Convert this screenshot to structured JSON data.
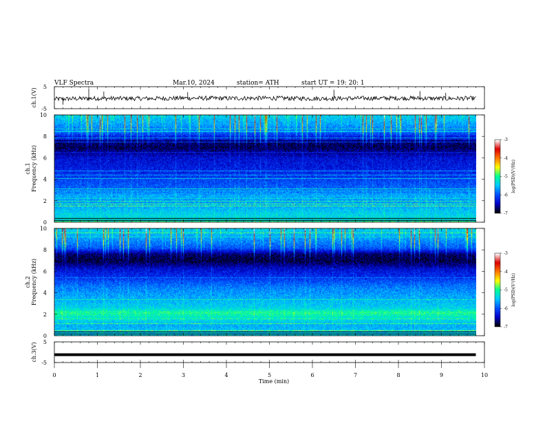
{
  "header": {
    "title": "VLF  Spectra",
    "date": "Mar.10, 2024",
    "station": "station= ATH",
    "start_ut": "start  UT  =    19: 20: 1"
  },
  "chart_data": [
    {
      "type": "line",
      "name": "ch1-waveform",
      "ylabel": "ch.1(V)",
      "ylim": [
        -5,
        5
      ],
      "y_ticks": [
        "5",
        "-5"
      ],
      "x": [
        0,
        1,
        2,
        3,
        4,
        5,
        6,
        7,
        8,
        9,
        9.8
      ],
      "values": [
        -0.6,
        -0.3,
        -0.4,
        -0.2,
        -0.3,
        -0.2,
        -0.4,
        -0.3,
        -0.2,
        -0.4,
        -0.3
      ],
      "spikes": [
        {
          "x": 0.2,
          "y": -3.2
        },
        {
          "x": 0.8,
          "y": 4.2
        },
        {
          "x": 1.15,
          "y": 2.8
        },
        {
          "x": 3.1,
          "y": 2.5
        },
        {
          "x": 6.5,
          "y": 3.6
        },
        {
          "x": 8.5,
          "y": 3.0
        },
        {
          "x": 9.1,
          "y": 2.2
        }
      ],
      "line_color": "#000000"
    },
    {
      "type": "heatmap",
      "name": "ch1-spectrogram",
      "ylabel": "ch.1\nFrequency  (kHz)",
      "ylim": [
        0,
        10
      ],
      "y_ticks": [
        "0",
        "2",
        "4",
        "6",
        "8",
        "10"
      ],
      "x_range_min": [
        0,
        9.8
      ],
      "profile_khz_level": [
        [
          0.0,
          3.4
        ],
        [
          0.8,
          3.2
        ],
        [
          1.5,
          2.8
        ],
        [
          2.0,
          2.6
        ],
        [
          2.5,
          2.8
        ],
        [
          3.0,
          2.2
        ],
        [
          4.0,
          1.8
        ],
        [
          5.0,
          1.4
        ],
        [
          6.0,
          1.2
        ],
        [
          7.0,
          0.4
        ],
        [
          7.6,
          0.6
        ],
        [
          8.2,
          1.8
        ],
        [
          9.0,
          2.6
        ],
        [
          10.0,
          3.2
        ]
      ],
      "colorbar": {
        "label": "log(PSD)(V²/Hz)",
        "range": [
          -7,
          -3
        ],
        "ticks": [
          "-3",
          "-4",
          "-5",
          "-6",
          "-7"
        ]
      }
    },
    {
      "type": "heatmap",
      "name": "ch2-spectrogram",
      "ylabel": "ch.2\nFrequency  (kHz)",
      "ylim": [
        0,
        10
      ],
      "y_ticks": [
        "0",
        "2",
        "4",
        "6",
        "8",
        "10"
      ],
      "x_range_min": [
        0,
        9.8
      ],
      "profile_khz_level": [
        [
          0.0,
          3.2
        ],
        [
          1.0,
          2.8
        ],
        [
          1.8,
          3.6
        ],
        [
          2.2,
          4.0
        ],
        [
          2.6,
          3.2
        ],
        [
          3.5,
          2.8
        ],
        [
          4.5,
          2.4
        ],
        [
          5.5,
          1.6
        ],
        [
          6.2,
          1.2
        ],
        [
          7.0,
          0.3
        ],
        [
          7.6,
          0.5
        ],
        [
          8.2,
          2.0
        ],
        [
          9.0,
          2.6
        ],
        [
          10.0,
          3.2
        ]
      ],
      "colorbar": {
        "label": "log(PSD)(V²/Hz)",
        "range": [
          -7,
          -3
        ],
        "ticks": [
          "-3",
          "-4",
          "-5",
          "-6",
          "-7"
        ]
      }
    },
    {
      "type": "line",
      "name": "ch3-waveform",
      "ylabel": "ch.3(V)",
      "ylim": [
        -5,
        5
      ],
      "y_ticks": [
        "5",
        "-5"
      ],
      "x": [
        0,
        9.8
      ],
      "values": [
        -1.2,
        -1.2
      ],
      "line_color": "#000000"
    }
  ],
  "x_axis": {
    "label": "Time  (min)",
    "xlim": [
      0,
      10
    ],
    "ticks": [
      "0",
      "1",
      "2",
      "3",
      "4",
      "5",
      "6",
      "7",
      "8",
      "9",
      "10"
    ]
  },
  "colormap": [
    "#000000",
    "#0000c8",
    "#0050ff",
    "#00c8ff",
    "#00ff96",
    "#ffff00",
    "#ff7800",
    "#dc0000",
    "#ffffff"
  ]
}
